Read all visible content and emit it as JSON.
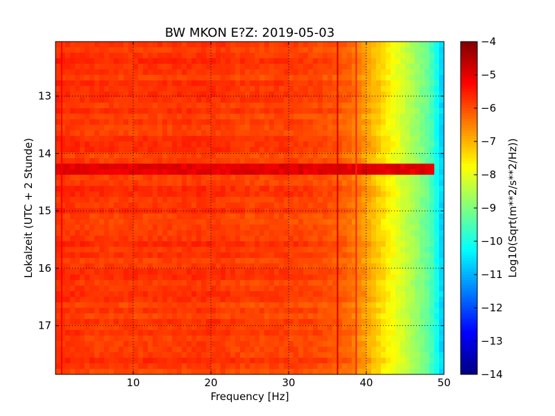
{
  "chart_data": {
    "type": "heatmap",
    "title": "BW MKON E?Z: 2019-05-03",
    "xlabel": "Frequency [Hz]",
    "ylabel": "Lokalzeit (UTC + 2 Stunde)",
    "xlim": [
      0,
      50
    ],
    "ylim": [
      12.05,
      17.85
    ],
    "x_ticks": [
      10,
      20,
      30,
      40,
      50
    ],
    "y_ticks": [
      13,
      14,
      15,
      16,
      17
    ],
    "x_tick_labels": [
      "10",
      "20",
      "30",
      "40",
      "50"
    ],
    "y_tick_labels": [
      "13",
      "14",
      "15",
      "16",
      "17"
    ],
    "y_inverted": true,
    "grid": true,
    "colormap": "jet",
    "colorbar": {
      "label": "Log10(Sqrt(m**2/s**2/Hz))",
      "range": [
        -14,
        -4
      ],
      "ticks": [
        -4,
        -5,
        -6,
        -7,
        -8,
        -9,
        -10,
        -11,
        -12,
        -13,
        -14
      ],
      "tick_labels": [
        "−4",
        "−5",
        "−6",
        "−7",
        "−8",
        "−9",
        "−10",
        "−11",
        "−12",
        "−13",
        "−14"
      ]
    },
    "frequency_profile": [
      {
        "freq": 0,
        "value": -5.7
      },
      {
        "freq": 5,
        "value": -5.8
      },
      {
        "freq": 10,
        "value": -5.8
      },
      {
        "freq": 15,
        "value": -5.8
      },
      {
        "freq": 20,
        "value": -5.75
      },
      {
        "freq": 25,
        "value": -5.9
      },
      {
        "freq": 30,
        "value": -5.85
      },
      {
        "freq": 35,
        "value": -6.0
      },
      {
        "freq": 38,
        "value": -6.3
      },
      {
        "freq": 40,
        "value": -6.8
      },
      {
        "freq": 42,
        "value": -7.4
      },
      {
        "freq": 44,
        "value": -8.0
      },
      {
        "freq": 46,
        "value": -8.6
      },
      {
        "freq": 48,
        "value": -9.3
      },
      {
        "freq": 49.5,
        "value": -10.4
      },
      {
        "freq": 50,
        "value": -11.0
      }
    ],
    "features": [
      {
        "type": "line",
        "freq": 36.3,
        "value": -4.8
      },
      {
        "type": "line",
        "freq": 38.7,
        "value": -5.6
      },
      {
        "type": "line",
        "freq": 0.8,
        "value": -5.2
      },
      {
        "type": "band",
        "time": 14.25,
        "value": -5.0
      }
    ]
  }
}
